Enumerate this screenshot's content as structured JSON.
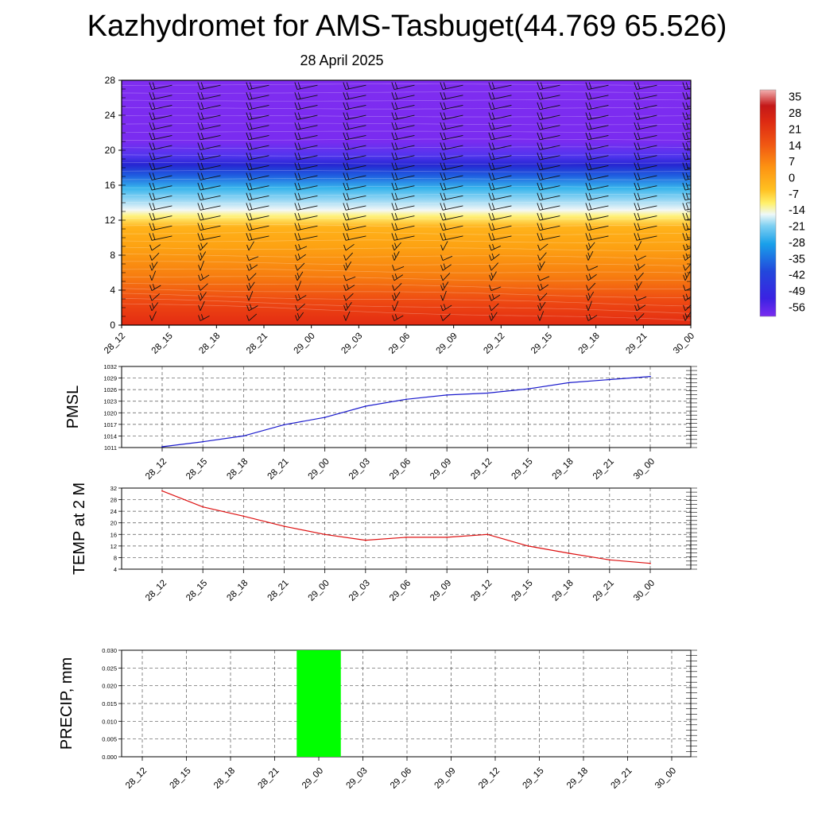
{
  "title": "Kazhydromet for AMS-Tasbuget(44.769 65.526)",
  "subtitle": "28 April 2025",
  "time_labels": [
    "28_12",
    "28_15",
    "28_18",
    "28_21",
    "29_00",
    "29_03",
    "29_06",
    "29_09",
    "29_12",
    "29_15",
    "29_18",
    "29_21",
    "30_00"
  ],
  "colors": {
    "pmsl_line": "#1a1acc",
    "temp_line": "#dd1111",
    "precip_bar": "#00ff00",
    "grid": "#555555"
  },
  "chart_data": [
    {
      "type": "heatmap",
      "name": "vertical-section",
      "x": [
        "28_12",
        "28_15",
        "28_18",
        "28_21",
        "29_00",
        "29_03",
        "29_06",
        "29_09",
        "29_12",
        "29_15",
        "29_18",
        "29_21",
        "30_00"
      ],
      "ylim": [
        0,
        28
      ],
      "yticks": [
        0,
        4,
        8,
        12,
        16,
        20,
        24,
        28
      ],
      "colorbar": {
        "labels": [
          35,
          28,
          21,
          14,
          7,
          0,
          -7,
          -14,
          -21,
          -28,
          -35,
          -42,
          -49,
          -56
        ],
        "range": [
          -60,
          38
        ]
      },
      "overlay": "wind barbs"
    },
    {
      "type": "line",
      "name": "pmsl",
      "ylabel": "PMSL",
      "x": [
        "28_12",
        "28_15",
        "28_18",
        "28_21",
        "29_00",
        "29_03",
        "29_06",
        "29_09",
        "29_12",
        "29_15",
        "29_18",
        "29_21",
        "30_00"
      ],
      "values": [
        1011.2,
        1012.5,
        1014.0,
        1016.9,
        1018.8,
        1021.7,
        1023.5,
        1024.6,
        1025.1,
        1026.2,
        1027.8,
        1028.6,
        1029.4
      ],
      "ylim": [
        1011,
        1032
      ],
      "yticks": [
        1011,
        1014,
        1017,
        1020,
        1023,
        1026,
        1029,
        1032
      ],
      "grid": true
    },
    {
      "type": "line",
      "name": "temp-2m",
      "ylabel": "TEMP at 2 M",
      "x": [
        "28_12",
        "28_15",
        "28_18",
        "28_21",
        "29_00",
        "29_03",
        "29_06",
        "29_09",
        "29_12",
        "29_15",
        "29_18",
        "29_21",
        "30_00"
      ],
      "values": [
        31.0,
        25.5,
        22.3,
        18.8,
        16.0,
        14.0,
        15.0,
        15.0,
        16.0,
        12.0,
        9.5,
        7.2,
        6.0
      ],
      "ylim": [
        4,
        32
      ],
      "yticks": [
        4,
        8,
        12,
        16,
        20,
        24,
        28,
        32
      ],
      "grid": true
    },
    {
      "type": "bar",
      "name": "precip",
      "ylabel": "PRECIP, mm",
      "x": [
        "28_12",
        "28_15",
        "28_18",
        "28_21",
        "29_00",
        "29_03",
        "29_06",
        "29_09",
        "29_12",
        "29_15",
        "29_18",
        "29_21",
        "30_00"
      ],
      "values": [
        0,
        0,
        0,
        0,
        0.03,
        0,
        0,
        0,
        0,
        0,
        0,
        0,
        0
      ],
      "ylim": [
        0,
        0.03
      ],
      "yticks": [
        "0.000",
        "0.005",
        "0.010",
        "0.015",
        "0.020",
        "0.025",
        "0.030"
      ],
      "grid": true
    }
  ]
}
